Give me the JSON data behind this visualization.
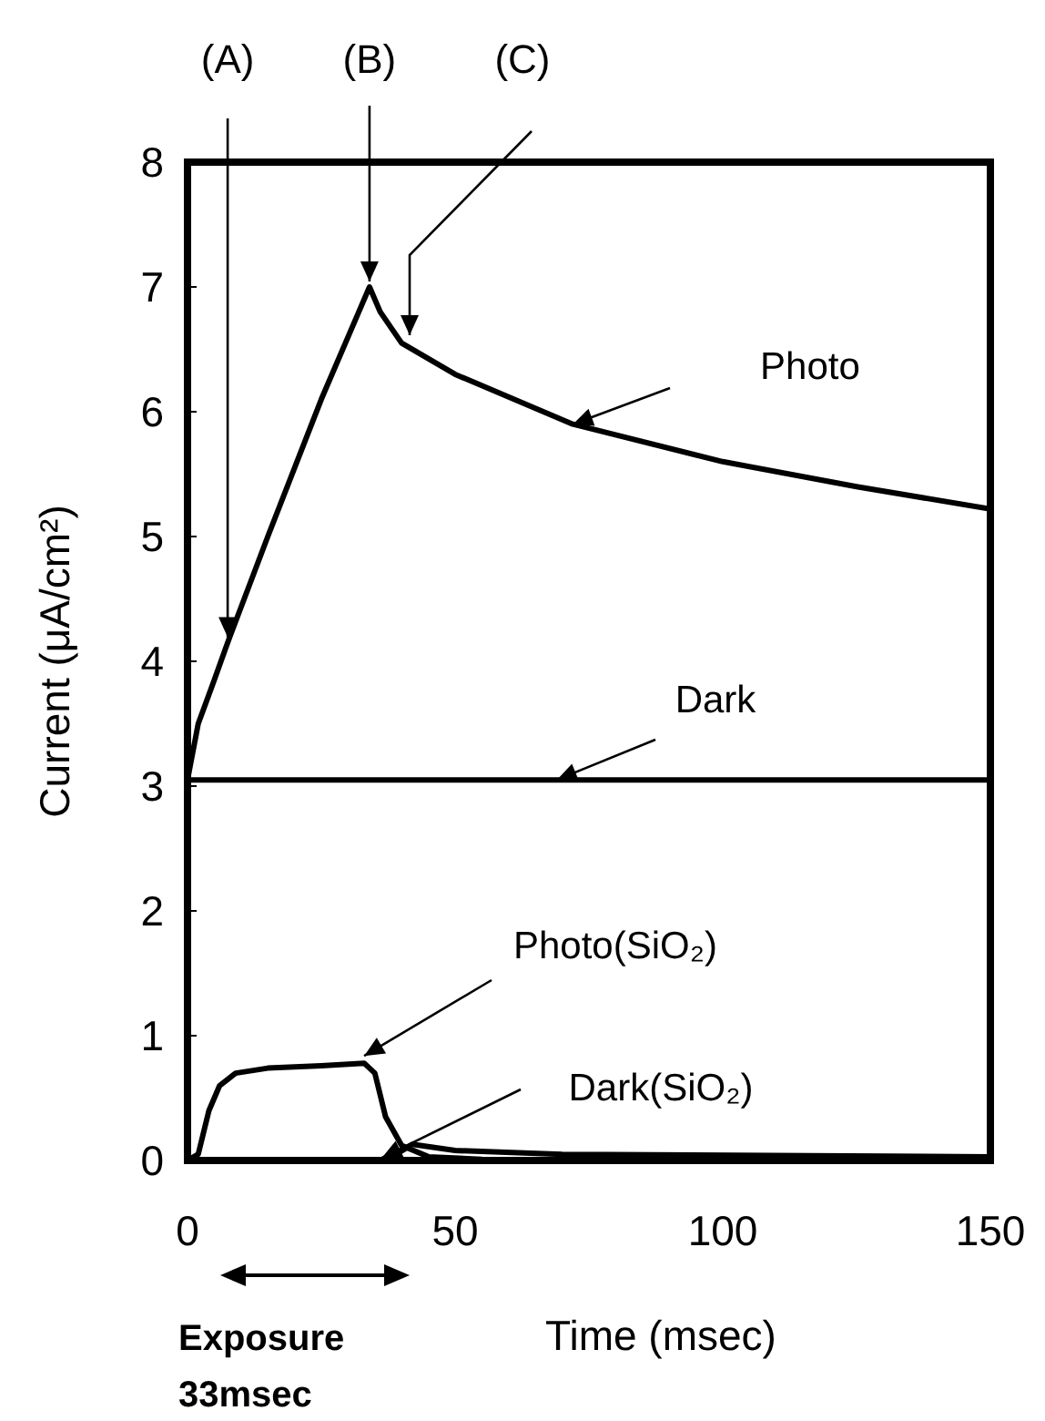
{
  "chart_data": {
    "type": "line",
    "xlabel": "Time (msec)",
    "ylabel": "Current (μA/cm²)",
    "xlim": [
      0,
      150
    ],
    "ylim": [
      0,
      8
    ],
    "xticks": [
      0,
      50,
      100,
      150
    ],
    "yticks": [
      0,
      1,
      2,
      3,
      4,
      5,
      6,
      7,
      8
    ],
    "grid": false,
    "legend": false,
    "marker": "none",
    "line_style": "solid",
    "series": [
      {
        "name": "Photo",
        "color": "#000000",
        "x": [
          0,
          2,
          5,
          7.5,
          15,
          25,
          32,
          34,
          36,
          40,
          50,
          72,
          100,
          125,
          150
        ],
        "values": [
          3.05,
          3.5,
          3.85,
          4.15,
          5.0,
          6.1,
          6.8,
          7.0,
          6.8,
          6.55,
          6.3,
          5.9,
          5.6,
          5.4,
          5.22
        ]
      },
      {
        "name": "Dark",
        "color": "#000000",
        "x": [
          0,
          69,
          150
        ],
        "values": [
          3.05,
          3.05,
          3.05
        ]
      },
      {
        "name": "Photo(SiO₂)",
        "color": "#000000",
        "x": [
          0,
          2,
          4,
          6,
          9,
          15,
          25,
          33,
          35,
          37,
          40,
          45,
          55,
          150
        ],
        "values": [
          0,
          0.05,
          0.4,
          0.6,
          0.7,
          0.74,
          0.76,
          0.78,
          0.7,
          0.35,
          0.12,
          0.03,
          0.01,
          0
        ]
      },
      {
        "name": "Dark(SiO₂)",
        "color": "#000000",
        "x": [
          0,
          36,
          39,
          42,
          50,
          70,
          150
        ],
        "values": [
          0,
          0,
          0.05,
          0.13,
          0.08,
          0.05,
          0.03
        ]
      }
    ],
    "annotations": [
      {
        "text": "(A)",
        "x": 7.5,
        "y": 4.15
      },
      {
        "text": "(B)",
        "x": 34,
        "y": 7.0
      },
      {
        "text": "(C)",
        "x": 41.5,
        "y": 6.57
      },
      "Exposure 33msec"
    ]
  }
}
